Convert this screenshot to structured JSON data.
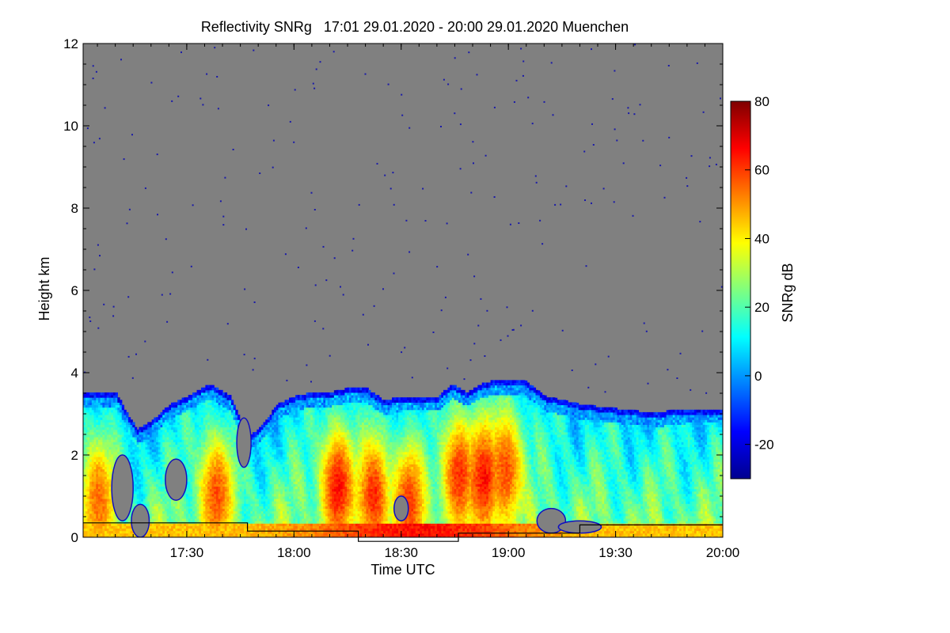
{
  "chart_data": {
    "type": "heatmap",
    "title": "Reflectivity SNRg   17:01 29.01.2020 - 20:00 29.01.2020 Muenchen",
    "xlabel": "Time UTC",
    "ylabel": "Height km",
    "colorbar_label": "SNRg dB",
    "x_range": [
      "17:01",
      "20:00"
    ],
    "y_range": [
      0,
      12
    ],
    "z_range": [
      -30,
      80
    ],
    "x_ticks": [
      {
        "value": 30,
        "label": "17:30"
      },
      {
        "value": 60,
        "label": "18:00"
      },
      {
        "value": 90,
        "label": "18:30"
      },
      {
        "value": 120,
        "label": "19:00"
      },
      {
        "value": 150,
        "label": "19:30"
      },
      {
        "value": 180,
        "label": "20:00"
      }
    ],
    "y_ticks": [
      {
        "value": 0,
        "label": "0"
      },
      {
        "value": 2,
        "label": "2"
      },
      {
        "value": 4,
        "label": "4"
      },
      {
        "value": 6,
        "label": "6"
      },
      {
        "value": 8,
        "label": "8"
      },
      {
        "value": 10,
        "label": "10"
      },
      {
        "value": 12,
        "label": "12"
      }
    ],
    "colorbar_ticks": [
      {
        "value": -20,
        "label": "-20"
      },
      {
        "value": 0,
        "label": "0"
      },
      {
        "value": 20,
        "label": "20"
      },
      {
        "value": 40,
        "label": "40"
      },
      {
        "value": 60,
        "label": "60"
      },
      {
        "value": 80,
        "label": "80"
      }
    ],
    "background_color": "#808080",
    "colormap": [
      "#00008f",
      "#0000ff",
      "#007fff",
      "#00ffff",
      "#7fff7f",
      "#ffff00",
      "#ff7f00",
      "#ff0000",
      "#7f0000"
    ],
    "cloud_top_profile": [
      [
        1,
        3.5
      ],
      [
        10,
        3.5
      ],
      [
        13,
        3.0
      ],
      [
        16,
        2.6
      ],
      [
        20,
        2.8
      ],
      [
        25,
        3.2
      ],
      [
        30,
        3.4
      ],
      [
        36,
        3.7
      ],
      [
        42,
        3.4
      ],
      [
        47,
        2.4
      ],
      [
        51,
        2.7
      ],
      [
        55,
        3.2
      ],
      [
        60,
        3.4
      ],
      [
        65,
        3.5
      ],
      [
        70,
        3.5
      ],
      [
        75,
        3.6
      ],
      [
        80,
        3.6
      ],
      [
        85,
        3.3
      ],
      [
        90,
        3.4
      ],
      [
        95,
        3.4
      ],
      [
        100,
        3.4
      ],
      [
        104,
        3.7
      ],
      [
        108,
        3.5
      ],
      [
        112,
        3.7
      ],
      [
        116,
        3.8
      ],
      [
        120,
        3.8
      ],
      [
        124,
        3.8
      ],
      [
        130,
        3.4
      ],
      [
        140,
        3.2
      ],
      [
        150,
        3.1
      ],
      [
        160,
        3.0
      ],
      [
        170,
        3.1
      ],
      [
        180,
        3.1
      ]
    ],
    "intense_cores": [
      {
        "t": 72,
        "h": 1.2,
        "peak": 65
      },
      {
        "t": 82,
        "h": 1.0,
        "peak": 62
      },
      {
        "t": 92,
        "h": 0.8,
        "peak": 60
      },
      {
        "t": 106,
        "h": 1.5,
        "peak": 62
      },
      {
        "t": 113,
        "h": 1.4,
        "peak": 65
      },
      {
        "t": 119,
        "h": 1.6,
        "peak": 58
      },
      {
        "t": 38,
        "h": 1.0,
        "peak": 58
      },
      {
        "t": 5,
        "h": 0.9,
        "peak": 55
      }
    ],
    "boundary_line": [
      [
        1,
        0.35
      ],
      [
        47,
        0.35
      ],
      [
        47,
        0.15
      ],
      [
        78,
        0.15
      ],
      [
        78,
        -0.1
      ],
      [
        106,
        -0.1
      ],
      [
        106,
        0.1
      ],
      [
        120,
        0.1
      ],
      [
        140,
        0.1
      ],
      [
        140,
        0.3
      ],
      [
        180,
        0.3
      ]
    ]
  }
}
